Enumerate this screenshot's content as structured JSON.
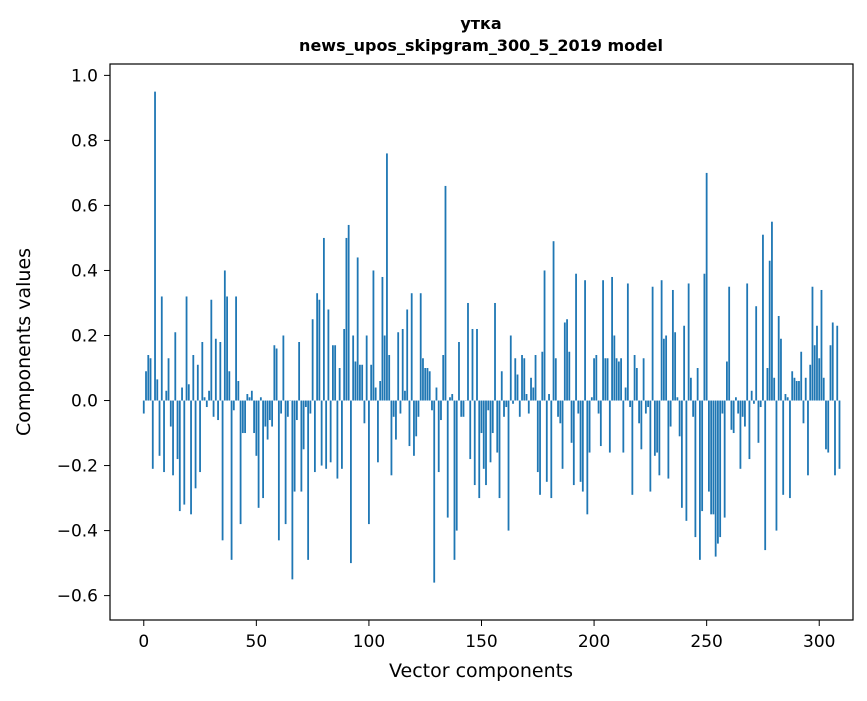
{
  "chart_data": {
    "type": "bar",
    "title": "утка",
    "subtitle": "news_upos_skipgram_300_5_2019 model",
    "xlabel": "Vector components",
    "ylabel": "Components values",
    "xlim": [
      -15,
      315
    ],
    "ylim": [
      -0.675,
      1.035
    ],
    "xticks": [
      0,
      50,
      100,
      150,
      200,
      250,
      300
    ],
    "xtick_labels": [
      "0",
      "50",
      "100",
      "150",
      "200",
      "250",
      "300"
    ],
    "yticks": [
      -0.6,
      -0.4,
      -0.2,
      0.0,
      0.2,
      0.4,
      0.6,
      0.8,
      1.0
    ],
    "ytick_labels": [
      "−0.6",
      "−0.4",
      "−0.2",
      "0.0",
      "0.2",
      "0.4",
      "0.6",
      "0.8",
      "1.0"
    ],
    "bar_color": "#1f77b4",
    "grid": false,
    "series": [
      {
        "x_start": 0,
        "values": [
          -0.04,
          0.09,
          0.14,
          0.13,
          -0.21,
          0.95,
          0.065,
          -0.17,
          0.32,
          -0.22,
          0.03,
          0.13,
          -0.08,
          -0.23,
          0.21,
          -0.18,
          -0.34,
          0.04,
          -0.32,
          0.32,
          0.05,
          -0.35,
          0.14,
          -0.27,
          0.11,
          -0.22,
          0.18,
          0.01,
          -0.02,
          0.03,
          0.31,
          -0.05,
          0.19,
          -0.06,
          0.18,
          -0.43,
          0.4,
          0.32,
          0.09,
          -0.49,
          -0.03,
          0.32,
          0.06,
          -0.38,
          -0.1,
          -0.1,
          0.02,
          0.01,
          0.03,
          -0.1,
          -0.17,
          -0.33,
          0.01,
          -0.3,
          -0.08,
          -0.12,
          -0.06,
          -0.08,
          0.17,
          0.16,
          -0.43,
          -0.04,
          0.2,
          -0.38,
          -0.05,
          0.0,
          -0.55,
          -0.28,
          -0.06,
          0.18,
          -0.28,
          -0.15,
          -0.02,
          -0.49,
          -0.04,
          0.25,
          -0.22,
          0.33,
          0.31,
          -0.2,
          0.5,
          -0.21,
          0.28,
          -0.19,
          0.17,
          0.17,
          -0.24,
          0.1,
          -0.21,
          0.22,
          0.5,
          0.54,
          -0.5,
          0.2,
          0.12,
          0.44,
          0.11,
          0.11,
          -0.07,
          0.2,
          -0.38,
          0.11,
          0.4,
          0.04,
          -0.19,
          0.06,
          0.38,
          0.2,
          0.76,
          0.14,
          -0.23,
          -0.05,
          -0.12,
          0.21,
          -0.04,
          0.22,
          0.03,
          0.28,
          -0.14,
          0.33,
          -0.17,
          -0.11,
          -0.05,
          0.33,
          0.13,
          0.1,
          0.1,
          0.09,
          -0.03,
          -0.56,
          0.04,
          -0.22,
          -0.06,
          0.14,
          0.66,
          -0.36,
          0.01,
          0.02,
          -0.49,
          -0.4,
          0.18,
          -0.05,
          -0.05,
          0.0,
          0.3,
          -0.18,
          0.22,
          -0.26,
          0.22,
          -0.3,
          -0.1,
          -0.21,
          -0.26,
          -0.03,
          -0.19,
          -0.1,
          0.3,
          -0.16,
          -0.3,
          0.09,
          -0.05,
          -0.02,
          -0.4,
          0.2,
          -0.01,
          0.13,
          0.08,
          -0.05,
          0.14,
          0.13,
          0.02,
          -0.04,
          0.07,
          0.04,
          0.14,
          -0.22,
          -0.29,
          0.15,
          0.4,
          -0.25,
          0.02,
          -0.3,
          0.49,
          0.13,
          -0.05,
          -0.07,
          -0.21,
          0.24,
          0.25,
          0.15,
          -0.13,
          -0.26,
          0.39,
          -0.04,
          -0.25,
          -0.28,
          0.37,
          -0.35,
          -0.16,
          0.01,
          0.13,
          0.14,
          -0.04,
          -0.14,
          0.37,
          0.13,
          0.13,
          -0.16,
          0.38,
          0.2,
          0.13,
          0.12,
          0.13,
          -0.16,
          0.04,
          0.36,
          -0.02,
          -0.29,
          0.14,
          0.1,
          -0.07,
          -0.15,
          0.13,
          -0.04,
          -0.02,
          -0.28,
          0.35,
          -0.17,
          -0.16,
          -0.23,
          0.37,
          0.19,
          0.2,
          -0.24,
          -0.08,
          0.34,
          0.21,
          0.01,
          -0.11,
          -0.33,
          0.23,
          -0.37,
          0.36,
          0.07,
          -0.05,
          -0.42,
          0.1,
          -0.49,
          -0.34,
          0.39,
          0.7,
          -0.28,
          -0.35,
          -0.35,
          -0.48,
          -0.44,
          -0.42,
          -0.04,
          -0.36,
          0.12,
          0.35,
          -0.09,
          -0.1,
          0.01,
          -0.04,
          -0.21,
          -0.05,
          -0.08,
          0.36,
          -0.18,
          0.03,
          -0.01,
          0.29,
          -0.13,
          -0.02,
          0.51,
          -0.46,
          0.1,
          0.43,
          0.55,
          0.07,
          -0.4,
          0.26,
          0.19,
          -0.29,
          0.02,
          0.01,
          -0.3,
          0.09,
          0.07,
          0.06,
          0.06,
          0.15,
          -0.07,
          0.07,
          -0.23,
          0.11,
          0.35,
          0.17,
          0.23,
          0.13,
          0.34,
          0.07,
          -0.15,
          -0.16,
          0.17,
          0.24,
          -0.23,
          0.23,
          -0.21
        ]
      }
    ]
  }
}
